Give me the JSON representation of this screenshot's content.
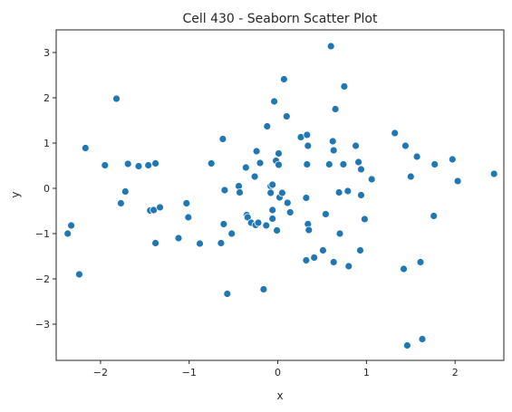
{
  "chart_data": {
    "type": "scatter",
    "title": "Cell 430 - Seaborn Scatter Plot",
    "xlabel": "x",
    "ylabel": "y",
    "xlim": [
      -2.5,
      2.55
    ],
    "ylim": [
      -3.8,
      3.5
    ],
    "xticks": [
      -2,
      -1,
      0,
      1,
      2
    ],
    "yticks": [
      -3,
      -2,
      -1,
      0,
      1,
      2,
      3
    ],
    "xtick_labels": [
      "−2",
      "−1",
      "0",
      "1",
      "2"
    ],
    "ytick_labels": [
      "−3",
      "−2",
      "−1",
      "0",
      "1",
      "2",
      "3"
    ],
    "grid": false,
    "legend": "none",
    "marker_color": "#1f77b4",
    "points": [
      [
        -2.37,
        -1.0
      ],
      [
        -2.33,
        -0.82
      ],
      [
        -2.24,
        -1.9
      ],
      [
        -2.17,
        0.89
      ],
      [
        -1.95,
        0.51
      ],
      [
        -1.82,
        1.98
      ],
      [
        -1.77,
        -0.33
      ],
      [
        -1.72,
        -0.07
      ],
      [
        -1.69,
        0.54
      ],
      [
        -1.57,
        0.49
      ],
      [
        -1.46,
        0.51
      ],
      [
        -1.44,
        -0.49
      ],
      [
        -1.4,
        -0.48
      ],
      [
        -1.38,
        0.55
      ],
      [
        -1.38,
        -1.21
      ],
      [
        -1.33,
        -0.42
      ],
      [
        -1.12,
        -1.1
      ],
      [
        -1.03,
        -0.33
      ],
      [
        -1.01,
        -0.64
      ],
      [
        -0.88,
        -1.22
      ],
      [
        -0.75,
        0.55
      ],
      [
        -0.64,
        -1.21
      ],
      [
        -0.62,
        1.09
      ],
      [
        -0.61,
        -0.79
      ],
      [
        -0.6,
        -0.04
      ],
      [
        -0.57,
        -2.33
      ],
      [
        -0.52,
        -1.0
      ],
      [
        -0.44,
        0.05
      ],
      [
        -0.43,
        -0.09
      ],
      [
        -0.36,
        0.46
      ],
      [
        -0.35,
        -0.59
      ],
      [
        -0.34,
        -0.64
      ],
      [
        -0.3,
        -0.76
      ],
      [
        -0.26,
        0.26
      ],
      [
        -0.25,
        -0.81
      ],
      [
        -0.24,
        0.82
      ],
      [
        -0.22,
        -0.76
      ],
      [
        -0.2,
        0.56
      ],
      [
        -0.16,
        -2.23
      ],
      [
        -0.13,
        -0.82
      ],
      [
        -0.12,
        1.37
      ],
      [
        -0.08,
        0.05
      ],
      [
        -0.08,
        -0.1
      ],
      [
        -0.06,
        0.08
      ],
      [
        -0.06,
        -0.48
      ],
      [
        -0.06,
        -0.67
      ],
      [
        -0.04,
        1.92
      ],
      [
        -0.02,
        0.61
      ],
      [
        -0.01,
        -0.93
      ],
      [
        0.01,
        0.52
      ],
      [
        0.01,
        0.77
      ],
      [
        0.02,
        -0.2
      ],
      [
        0.05,
        -0.1
      ],
      [
        0.07,
        2.41
      ],
      [
        0.1,
        1.59
      ],
      [
        0.11,
        -0.32
      ],
      [
        0.14,
        -0.53
      ],
      [
        0.26,
        1.13
      ],
      [
        0.32,
        -0.21
      ],
      [
        0.32,
        -1.59
      ],
      [
        0.33,
        1.18
      ],
      [
        0.33,
        0.53
      ],
      [
        0.34,
        0.94
      ],
      [
        0.34,
        -0.79
      ],
      [
        0.35,
        -0.92
      ],
      [
        0.41,
        -1.53
      ],
      [
        0.51,
        -1.37
      ],
      [
        0.54,
        -0.57
      ],
      [
        0.58,
        0.53
      ],
      [
        0.6,
        3.14
      ],
      [
        0.62,
        1.04
      ],
      [
        0.63,
        0.84
      ],
      [
        0.63,
        -1.63
      ],
      [
        0.65,
        1.75
      ],
      [
        0.69,
        -0.09
      ],
      [
        0.7,
        -1.0
      ],
      [
        0.74,
        0.53
      ],
      [
        0.75,
        2.25
      ],
      [
        0.79,
        -0.06
      ],
      [
        0.8,
        -1.72
      ],
      [
        0.88,
        0.94
      ],
      [
        0.91,
        0.58
      ],
      [
        0.93,
        -1.37
      ],
      [
        0.94,
        0.42
      ],
      [
        0.94,
        -0.15
      ],
      [
        0.98,
        -0.68
      ],
      [
        1.06,
        0.2
      ],
      [
        1.32,
        1.22
      ],
      [
        1.42,
        -1.78
      ],
      [
        1.44,
        0.94
      ],
      [
        1.46,
        -3.47
      ],
      [
        1.5,
        0.26
      ],
      [
        1.57,
        0.7
      ],
      [
        1.61,
        -1.63
      ],
      [
        1.63,
        -3.33
      ],
      [
        1.76,
        -0.61
      ],
      [
        1.77,
        0.53
      ],
      [
        1.97,
        0.64
      ],
      [
        2.03,
        0.16
      ],
      [
        2.44,
        0.32
      ]
    ]
  }
}
